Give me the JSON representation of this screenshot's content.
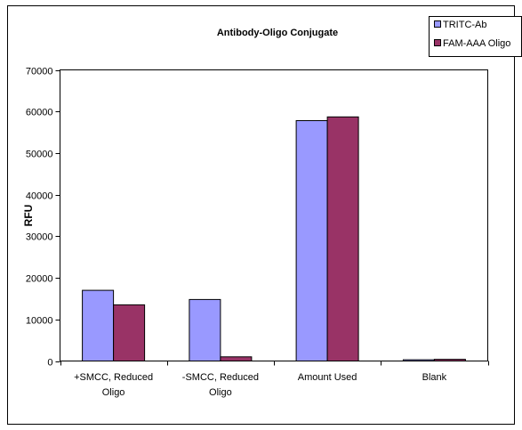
{
  "chart_data": {
    "type": "bar",
    "title": "Antibody-Oligo Conjugate",
    "xlabel": "",
    "ylabel": "RFU",
    "ylim": [
      0,
      70000
    ],
    "yticks": [
      0,
      10000,
      20000,
      30000,
      40000,
      50000,
      60000,
      70000
    ],
    "ytick_labels": [
      "0",
      "10000",
      "20000",
      "30000",
      "40000",
      "50000",
      "60000",
      "70000"
    ],
    "categories": [
      [
        "+SMCC, Reduced",
        "Oligo"
      ],
      [
        "-SMCC, Reduced",
        "Oligo"
      ],
      [
        "Amount Used"
      ],
      [
        "Blank"
      ]
    ],
    "series": [
      {
        "name": "TRITC-Ab",
        "color": "#9999ff",
        "values": [
          17000,
          14800,
          57800,
          300
        ]
      },
      {
        "name": "FAM-AAA Oligo",
        "color": "#993366",
        "values": [
          13500,
          1000,
          58700,
          400
        ]
      }
    ],
    "legend": "top-right",
    "grid": false
  }
}
